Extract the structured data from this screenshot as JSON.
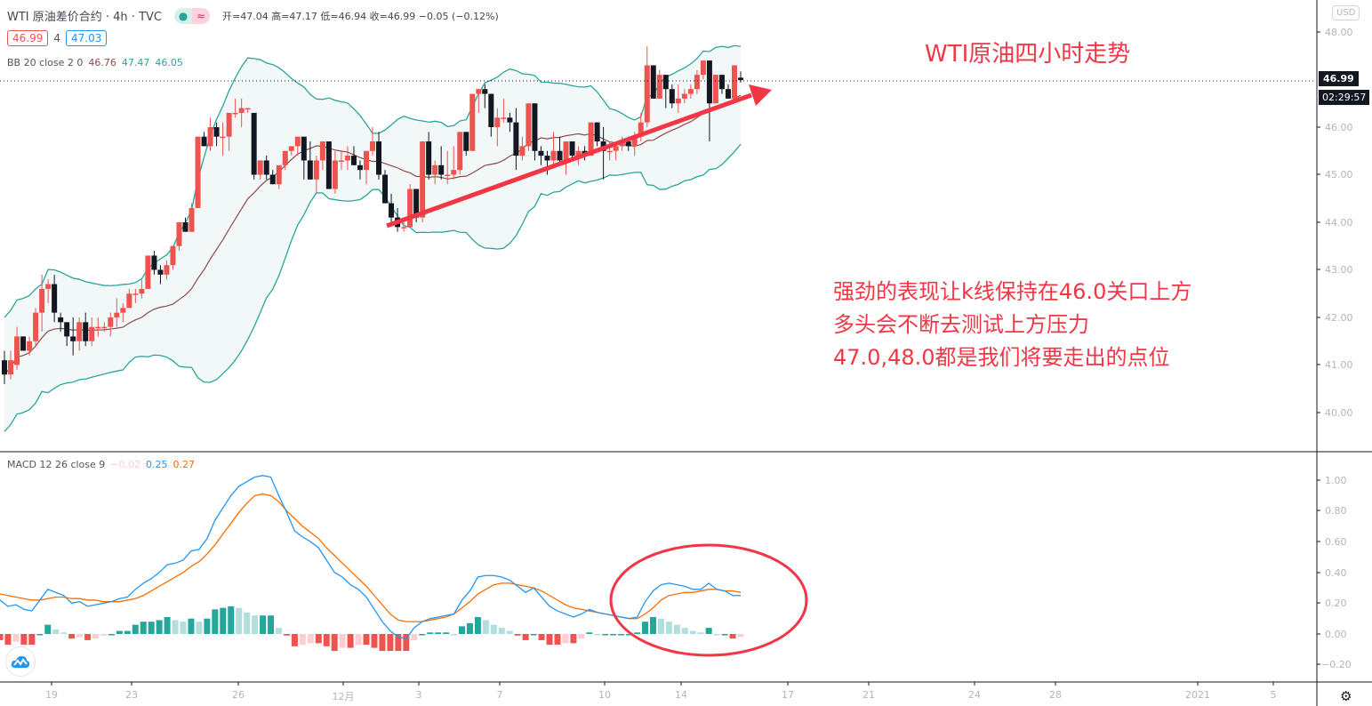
{
  "header": {
    "symbol_title": "WTI 原油差价合约 · 4h · TVC",
    "status_dot": "●",
    "status_wave": "≈",
    "ohlc": "开=47.04 高=47.17 低=46.94 收=46.99 −0.05 (−0.12%)",
    "bid": "46.99",
    "spread": "4",
    "ask": "47.03"
  },
  "indicators": {
    "bb": {
      "label": "BB 20 close 2 0",
      "basis": "46.76",
      "upper": "47.47",
      "lower": "46.05"
    },
    "macd": {
      "label": "MACD 12 26 close 9",
      "hist": "−0.02",
      "macd": "0.25",
      "signal": "0.27"
    }
  },
  "price_axis": {
    "currency": "USD",
    "ticks": [
      "48.00",
      "46.00",
      "45.00",
      "44.00",
      "43.00",
      "42.00",
      "41.00",
      "40.00"
    ],
    "last_price": "46.99",
    "countdown": "02:29:57"
  },
  "macd_axis": {
    "ticks": [
      "1.00",
      "0.80",
      "0.60",
      "0.40",
      "0.20",
      "0.00",
      "−0.20"
    ]
  },
  "time_axis": {
    "ticks": [
      "19",
      "23",
      "26",
      "12月",
      "3",
      "7",
      "10",
      "14",
      "17",
      "21",
      "24",
      "28",
      "2021",
      "5"
    ]
  },
  "annotations": {
    "title": "WTI原油四小时走势",
    "lines": [
      "强劲的表现让k线保持在46.0关口上方",
      "多头会不断去测试上方压力",
      "47.0,48.0都是我们将要走出的点位"
    ]
  },
  "colors": {
    "up": "#ef5350",
    "down": "#131722",
    "bb_band": "#26a69a",
    "bb_fill": "#f2f8f7",
    "bb_basis": "#8d4b4b",
    "macd_line": "#2196f3",
    "signal_line": "#ff6d00",
    "hist_up_strong": "#26a69a",
    "hist_up_weak": "#b2dfdb",
    "hist_down_strong": "#ef5350",
    "hist_down_weak": "#ffcdd2",
    "annotation": "#f23645"
  },
  "chart_data": [
    {
      "type": "candlestick",
      "title": "WTI 原油差价合约 · 4h · TVC",
      "ylabel": "USD",
      "ylim": [
        39.0,
        48.7
      ],
      "x_ticks": [
        "19",
        "23",
        "26",
        "12月",
        "3",
        "7",
        "10",
        "14",
        "17",
        "21",
        "24",
        "28",
        "2021",
        "5"
      ],
      "candles": [
        [
          41.1,
          41.3,
          40.6,
          40.8
        ],
        [
          40.8,
          41.3,
          40.7,
          41.1
        ],
        [
          41.0,
          41.8,
          40.9,
          41.6
        ],
        [
          41.6,
          41.6,
          41.3,
          41.3
        ],
        [
          41.3,
          41.6,
          41.2,
          41.5
        ],
        [
          41.5,
          42.2,
          41.4,
          42.1
        ],
        [
          42.1,
          42.9,
          41.7,
          42.6
        ],
        [
          42.6,
          42.8,
          42.3,
          42.7
        ],
        [
          42.7,
          42.9,
          41.9,
          42.1
        ],
        [
          42.0,
          42.1,
          41.7,
          41.9
        ],
        [
          41.9,
          41.9,
          41.4,
          41.6
        ],
        [
          41.6,
          42.0,
          41.2,
          41.5
        ],
        [
          41.5,
          42.0,
          41.3,
          41.9
        ],
        [
          41.9,
          42.1,
          41.4,
          41.5
        ],
        [
          41.5,
          42.0,
          41.4,
          41.8
        ],
        [
          41.8,
          42.0,
          41.6,
          41.8
        ],
        [
          41.8,
          41.9,
          41.7,
          41.8
        ],
        [
          41.8,
          42.1,
          41.6,
          42.0
        ],
        [
          42.0,
          42.4,
          41.8,
          42.1
        ],
        [
          42.1,
          42.3,
          41.9,
          42.2
        ],
        [
          42.2,
          42.6,
          42.2,
          42.5
        ],
        [
          42.5,
          42.6,
          42.3,
          42.5
        ],
        [
          42.5,
          42.8,
          42.4,
          42.6
        ],
        [
          42.6,
          43.2,
          42.6,
          43.3
        ],
        [
          43.3,
          43.4,
          42.9,
          43.0
        ],
        [
          43.0,
          43.1,
          42.7,
          42.9
        ],
        [
          42.9,
          43.2,
          42.8,
          43.1
        ],
        [
          43.1,
          43.5,
          43.0,
          43.5
        ],
        [
          43.5,
          44.0,
          43.4,
          44.0
        ],
        [
          44.0,
          44.1,
          43.8,
          43.8
        ],
        [
          43.8,
          44.4,
          43.8,
          44.3
        ],
        [
          44.3,
          45.8,
          44.3,
          45.8
        ],
        [
          45.8,
          45.9,
          45.6,
          45.6
        ],
        [
          45.6,
          46.2,
          45.5,
          46.0
        ],
        [
          46.0,
          46.1,
          45.6,
          45.8
        ],
        [
          45.8,
          46.1,
          45.4,
          45.8
        ],
        [
          45.8,
          46.3,
          45.5,
          46.3
        ],
        [
          46.3,
          46.6,
          46.2,
          46.3
        ],
        [
          46.3,
          46.6,
          46.0,
          46.4
        ],
        [
          46.4,
          46.4,
          46.3,
          46.4
        ],
        [
          46.3,
          46.3,
          44.9,
          45.0
        ],
        [
          45.0,
          45.3,
          44.9,
          45.3
        ],
        [
          45.3,
          45.4,
          44.9,
          45.0
        ],
        [
          45.0,
          45.1,
          44.8,
          44.8
        ],
        [
          44.8,
          45.1,
          44.7,
          45.2
        ],
        [
          45.2,
          45.5,
          45.1,
          45.5
        ],
        [
          45.5,
          45.6,
          45.4,
          45.6
        ],
        [
          45.6,
          45.8,
          45.4,
          45.8
        ],
        [
          45.8,
          45.8,
          44.9,
          45.3
        ],
        [
          45.3,
          45.7,
          44.9,
          44.9
        ],
        [
          44.9,
          45.4,
          44.6,
          45.3
        ],
        [
          45.3,
          45.7,
          45.1,
          45.7
        ],
        [
          45.7,
          45.7,
          44.7,
          44.7
        ],
        [
          44.7,
          45.5,
          44.6,
          45.3
        ],
        [
          45.3,
          45.5,
          45.1,
          45.3
        ],
        [
          45.3,
          45.6,
          45.1,
          45.4
        ],
        [
          45.4,
          45.6,
          45.2,
          45.2
        ],
        [
          45.2,
          45.3,
          44.9,
          45.1
        ],
        [
          45.1,
          45.5,
          44.8,
          45.5
        ],
        [
          45.5,
          46.0,
          45.4,
          45.7
        ],
        [
          45.7,
          45.9,
          44.9,
          45.0
        ],
        [
          45.0,
          45.1,
          44.4,
          44.4
        ],
        [
          44.4,
          44.6,
          44.0,
          44.1
        ],
        [
          44.1,
          44.3,
          43.8,
          43.9
        ],
        [
          43.9,
          44.0,
          43.8,
          43.9
        ],
        [
          43.9,
          44.8,
          43.9,
          44.7
        ],
        [
          44.7,
          44.7,
          44.0,
          44.1
        ],
        [
          44.1,
          45.7,
          44.0,
          45.7
        ],
        [
          45.7,
          45.9,
          44.9,
          45.0
        ],
        [
          45.0,
          45.3,
          44.8,
          45.2
        ],
        [
          45.2,
          45.6,
          44.9,
          45.0
        ],
        [
          45.0,
          45.5,
          44.8,
          45.0
        ],
        [
          45.0,
          45.6,
          44.9,
          45.1
        ],
        [
          45.1,
          45.9,
          45.0,
          45.9
        ],
        [
          45.9,
          45.9,
          45.4,
          45.5
        ],
        [
          45.5,
          46.7,
          45.5,
          46.7
        ],
        [
          46.7,
          46.8,
          46.3,
          46.8
        ],
        [
          46.8,
          46.9,
          46.4,
          46.7
        ],
        [
          46.7,
          46.7,
          45.8,
          46.0
        ],
        [
          46.0,
          46.4,
          45.6,
          46.2
        ],
        [
          46.2,
          46.6,
          46.1,
          46.2
        ],
        [
          46.2,
          46.3,
          45.9,
          46.1
        ],
        [
          46.1,
          46.4,
          45.1,
          45.4
        ],
        [
          45.4,
          45.8,
          45.3,
          45.6
        ],
        [
          45.6,
          46.5,
          45.5,
          46.5
        ],
        [
          46.5,
          46.5,
          45.3,
          45.5
        ],
        [
          45.5,
          45.6,
          45.2,
          45.4
        ],
        [
          45.4,
          45.5,
          45.0,
          45.3
        ],
        [
          45.3,
          45.9,
          45.2,
          45.5
        ],
        [
          45.5,
          45.8,
          45.2,
          45.3
        ],
        [
          45.3,
          45.7,
          45.0,
          45.7
        ],
        [
          45.7,
          45.7,
          45.3,
          45.4
        ],
        [
          45.4,
          45.6,
          45.2,
          45.5
        ],
        [
          45.5,
          45.6,
          45.3,
          45.4
        ],
        [
          45.4,
          46.1,
          45.4,
          46.1
        ],
        [
          46.1,
          46.1,
          45.6,
          45.7
        ],
        [
          45.7,
          46.0,
          44.9,
          45.5
        ],
        [
          45.5,
          45.7,
          45.3,
          45.5
        ],
        [
          45.5,
          45.6,
          45.3,
          45.6
        ],
        [
          45.6,
          45.8,
          45.5,
          45.7
        ],
        [
          45.7,
          45.8,
          45.5,
          45.6
        ],
        [
          45.6,
          45.9,
          45.4,
          45.8
        ],
        [
          45.8,
          46.3,
          45.7,
          46.1
        ],
        [
          46.1,
          47.7,
          46.0,
          47.3
        ],
        [
          47.3,
          47.3,
          46.8,
          46.6
        ],
        [
          46.6,
          47.2,
          46.7,
          47.1
        ],
        [
          47.1,
          47.1,
          46.4,
          46.8
        ],
        [
          46.8,
          46.9,
          46.4,
          46.5
        ],
        [
          46.5,
          46.9,
          46.3,
          46.6
        ],
        [
          46.6,
          46.8,
          46.5,
          46.7
        ],
        [
          46.7,
          46.9,
          46.6,
          46.8
        ],
        [
          46.8,
          47.2,
          46.7,
          47.1
        ],
        [
          47.1,
          47.4,
          47.0,
          47.4
        ],
        [
          47.4,
          47.4,
          45.7,
          46.5
        ],
        [
          46.5,
          47.1,
          46.5,
          47.1
        ],
        [
          47.1,
          47.1,
          46.7,
          46.8
        ],
        [
          46.8,
          46.9,
          46.6,
          46.6
        ],
        [
          46.6,
          47.3,
          46.6,
          47.3
        ],
        [
          47.04,
          47.17,
          46.94,
          46.99
        ]
      ],
      "bollinger": {
        "period": 20,
        "stddev": 2,
        "last": {
          "basis": 46.76,
          "upper": 47.47,
          "lower": 46.05
        }
      }
    },
    {
      "type": "line+bar",
      "title": "MACD 12 26 close 9",
      "ylim": [
        -0.3,
        1.1
      ],
      "last": {
        "histogram": -0.02,
        "macd": 0.25,
        "signal": 0.27
      },
      "series": [
        {
          "name": "MACD",
          "values": [
            0.22,
            0.18,
            0.19,
            0.16,
            0.15,
            0.22,
            0.29,
            0.27,
            0.25,
            0.2,
            0.21,
            0.18,
            0.19,
            0.2,
            0.21,
            0.23,
            0.24,
            0.29,
            0.33,
            0.36,
            0.4,
            0.45,
            0.46,
            0.48,
            0.54,
            0.55,
            0.62,
            0.74,
            0.82,
            0.9,
            0.96,
            0.99,
            1.02,
            1.03,
            1.02,
            0.9,
            0.79,
            0.67,
            0.63,
            0.6,
            0.56,
            0.48,
            0.4,
            0.37,
            0.32,
            0.29,
            0.24,
            0.16,
            0.08,
            0.02,
            -0.02,
            -0.03,
            0.04,
            0.08,
            0.1,
            0.11,
            0.12,
            0.13,
            0.22,
            0.28,
            0.37,
            0.38,
            0.38,
            0.37,
            0.35,
            0.31,
            0.27,
            0.3,
            0.24,
            0.18,
            0.15,
            0.13,
            0.11,
            0.13,
            0.16,
            0.14,
            0.13,
            0.12,
            0.11,
            0.1,
            0.11,
            0.21,
            0.28,
            0.32,
            0.33,
            0.32,
            0.31,
            0.29,
            0.29,
            0.33,
            0.29,
            0.28,
            0.25,
            0.25
          ]
        },
        {
          "name": "Signal",
          "values": [
            0.26,
            0.25,
            0.24,
            0.23,
            0.22,
            0.22,
            0.23,
            0.24,
            0.24,
            0.23,
            0.23,
            0.22,
            0.22,
            0.21,
            0.21,
            0.21,
            0.22,
            0.23,
            0.25,
            0.28,
            0.31,
            0.34,
            0.37,
            0.4,
            0.44,
            0.47,
            0.52,
            0.58,
            0.65,
            0.72,
            0.79,
            0.85,
            0.9,
            0.91,
            0.9,
            0.86,
            0.8,
            0.75,
            0.7,
            0.66,
            0.62,
            0.56,
            0.51,
            0.46,
            0.41,
            0.36,
            0.31,
            0.25,
            0.19,
            0.13,
            0.09,
            0.08,
            0.08,
            0.08,
            0.09,
            0.1,
            0.11,
            0.13,
            0.17,
            0.21,
            0.26,
            0.29,
            0.32,
            0.33,
            0.33,
            0.32,
            0.31,
            0.3,
            0.28,
            0.25,
            0.22,
            0.19,
            0.17,
            0.16,
            0.15,
            0.14,
            0.13,
            0.12,
            0.11,
            0.1,
            0.1,
            0.13,
            0.17,
            0.22,
            0.25,
            0.26,
            0.27,
            0.27,
            0.28,
            0.29,
            0.29,
            0.28,
            0.28,
            0.27
          ]
        },
        {
          "name": "Histogram",
          "values": [
            -0.04,
            -0.07,
            -0.05,
            -0.07,
            -0.07,
            0.0,
            0.06,
            0.03,
            0.01,
            -0.03,
            -0.02,
            -0.04,
            -0.03,
            -0.01,
            0.0,
            0.02,
            0.02,
            0.06,
            0.08,
            0.08,
            0.09,
            0.11,
            0.09,
            0.08,
            0.1,
            0.08,
            0.1,
            0.16,
            0.17,
            0.18,
            0.17,
            0.14,
            0.12,
            0.12,
            0.12,
            0.04,
            -0.01,
            -0.08,
            -0.07,
            -0.06,
            -0.06,
            -0.08,
            -0.11,
            -0.09,
            -0.09,
            -0.07,
            -0.07,
            -0.09,
            -0.11,
            -0.11,
            -0.11,
            -0.11,
            -0.04,
            0.0,
            0.01,
            0.01,
            0.01,
            0.0,
            0.05,
            0.07,
            0.11,
            0.09,
            0.06,
            0.04,
            0.02,
            -0.01,
            -0.04,
            0.0,
            -0.04,
            -0.07,
            -0.07,
            -0.06,
            -0.06,
            -0.03,
            0.01,
            0.0,
            0.0,
            0.0,
            0.0,
            0.0,
            0.01,
            0.08,
            0.11,
            0.1,
            0.08,
            0.06,
            0.04,
            0.02,
            0.01,
            0.04,
            0.0,
            0.0,
            -0.03,
            -0.02
          ]
        }
      ]
    }
  ]
}
